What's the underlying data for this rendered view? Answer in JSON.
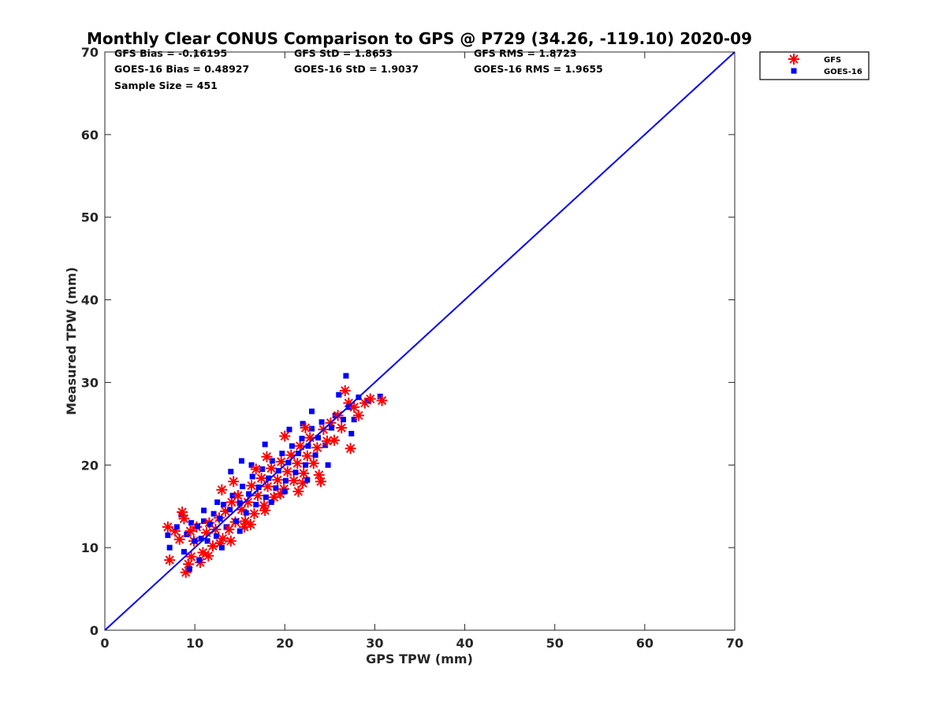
{
  "chart_data": {
    "type": "scatter",
    "title": "Monthly Clear CONUS Comparison to GPS @ P729 (34.26, -119.10) 2020-09",
    "xlabel": "GPS TPW (mm)",
    "ylabel": "Measured TPW (mm)",
    "xlim": [
      0,
      70
    ],
    "ylim": [
      0,
      70
    ],
    "xticks": [
      "0",
      "10",
      "20",
      "30",
      "40",
      "50",
      "60",
      "70"
    ],
    "yticks": [
      "0",
      "10",
      "20",
      "30",
      "40",
      "50",
      "60",
      "70"
    ],
    "grid": false,
    "legend_position": "outside-top-right",
    "stats": [
      "GFS Bias = -0.16195",
      "GFS StD = 1.8653",
      "GFS RMS = 1.8723",
      "GOES-16 Bias = 0.48927",
      "GOES-16 StD = 1.9037",
      "GOES-16 RMS = 1.9655",
      "Sample Size = 451"
    ],
    "reference_line": {
      "x": [
        0,
        70
      ],
      "y": [
        0,
        70
      ],
      "color": "#0000ff"
    },
    "series": [
      {
        "name": "GFS",
        "marker": "asterisk",
        "color": "#ff0000",
        "points": [
          [
            7.0,
            12.5
          ],
          [
            7.2,
            8.5
          ],
          [
            7.8,
            12.0
          ],
          [
            8.3,
            11.0
          ],
          [
            8.6,
            14.3
          ],
          [
            9.0,
            7.0
          ],
          [
            9.3,
            8.0
          ],
          [
            9.6,
            8.9
          ],
          [
            9.9,
            10.8
          ],
          [
            10.2,
            12.5
          ],
          [
            10.6,
            8.2
          ],
          [
            10.9,
            9.4
          ],
          [
            11.3,
            11.8
          ],
          [
            11.6,
            13.0
          ],
          [
            12.0,
            10.2
          ],
          [
            12.3,
            12.2
          ],
          [
            12.7,
            13.6
          ],
          [
            13.1,
            11.1
          ],
          [
            13.4,
            14.4
          ],
          [
            13.8,
            12.2
          ],
          [
            14.1,
            15.5
          ],
          [
            14.5,
            13.1
          ],
          [
            14.8,
            16.3
          ],
          [
            15.2,
            14.6
          ],
          [
            15.6,
            13.2
          ],
          [
            15.9,
            15.5
          ],
          [
            16.3,
            17.5
          ],
          [
            16.6,
            14.1
          ],
          [
            17.0,
            16.3
          ],
          [
            17.4,
            18.4
          ],
          [
            17.7,
            15.1
          ],
          [
            18.1,
            17.4
          ],
          [
            18.5,
            19.6
          ],
          [
            18.8,
            16.1
          ],
          [
            19.2,
            18.2
          ],
          [
            19.6,
            20.4
          ],
          [
            19.9,
            17.1
          ],
          [
            20.3,
            19.2
          ],
          [
            20.7,
            21.2
          ],
          [
            21.0,
            18.1
          ],
          [
            21.4,
            20.2
          ],
          [
            21.7,
            22.3
          ],
          [
            22.1,
            19.0
          ],
          [
            22.5,
            21.1
          ],
          [
            22.8,
            23.3
          ],
          [
            23.2,
            20.2
          ],
          [
            23.6,
            22.1
          ],
          [
            24.0,
            18.0
          ],
          [
            24.3,
            24.3
          ],
          [
            24.7,
            22.9
          ],
          [
            25.1,
            25.1
          ],
          [
            25.5,
            23.0
          ],
          [
            25.9,
            26.0
          ],
          [
            26.3,
            24.5
          ],
          [
            26.7,
            29.0
          ],
          [
            27.1,
            27.5
          ],
          [
            27.3,
            22.0
          ],
          [
            27.7,
            27.0
          ],
          [
            28.2,
            26.0
          ],
          [
            28.9,
            27.5
          ],
          [
            29.5,
            28.0
          ],
          [
            30.8,
            27.8
          ],
          [
            11.5,
            9.0
          ],
          [
            12.8,
            10.5
          ],
          [
            14.0,
            10.8
          ],
          [
            15.5,
            12.5
          ],
          [
            16.2,
            12.8
          ],
          [
            17.8,
            14.5
          ],
          [
            19.5,
            16.5
          ],
          [
            21.5,
            16.8
          ],
          [
            22.0,
            17.8
          ],
          [
            23.8,
            18.8
          ],
          [
            20.0,
            23.5
          ],
          [
            22.3,
            24.5
          ],
          [
            13.0,
            17.0
          ],
          [
            14.3,
            18.0
          ],
          [
            16.8,
            19.5
          ],
          [
            18.0,
            21.0
          ],
          [
            8.8,
            13.5
          ],
          [
            9.5,
            12.0
          ]
        ]
      },
      {
        "name": "GOES-16",
        "marker": "square",
        "color": "#0000ff",
        "points": [
          [
            7.0,
            11.5
          ],
          [
            7.2,
            10.0
          ],
          [
            8.0,
            12.5
          ],
          [
            8.5,
            14.0
          ],
          [
            8.8,
            9.5
          ],
          [
            9.1,
            11.6
          ],
          [
            9.4,
            7.4
          ],
          [
            9.6,
            13.0
          ],
          [
            10.0,
            10.8
          ],
          [
            10.3,
            12.6
          ],
          [
            10.7,
            11.1
          ],
          [
            11.0,
            13.2
          ],
          [
            11.4,
            10.8
          ],
          [
            11.7,
            12.8
          ],
          [
            12.1,
            14.1
          ],
          [
            12.4,
            11.4
          ],
          [
            12.8,
            13.5
          ],
          [
            13.2,
            15.2
          ],
          [
            13.5,
            12.5
          ],
          [
            13.9,
            14.6
          ],
          [
            14.2,
            16.3
          ],
          [
            14.6,
            13.2
          ],
          [
            15.0,
            15.4
          ],
          [
            15.3,
            17.4
          ],
          [
            15.7,
            14.2
          ],
          [
            16.0,
            16.5
          ],
          [
            16.4,
            18.6
          ],
          [
            16.8,
            15.2
          ],
          [
            17.1,
            17.3
          ],
          [
            17.5,
            19.5
          ],
          [
            17.9,
            16.1
          ],
          [
            18.2,
            18.4
          ],
          [
            18.6,
            20.5
          ],
          [
            19.0,
            17.2
          ],
          [
            19.3,
            19.3
          ],
          [
            19.7,
            21.4
          ],
          [
            20.1,
            18.1
          ],
          [
            20.4,
            20.3
          ],
          [
            20.8,
            22.3
          ],
          [
            21.2,
            19.1
          ],
          [
            21.5,
            21.4
          ],
          [
            21.9,
            23.2
          ],
          [
            22.3,
            20.0
          ],
          [
            22.6,
            22.3
          ],
          [
            23.0,
            24.4
          ],
          [
            23.4,
            21.2
          ],
          [
            23.7,
            23.3
          ],
          [
            24.1,
            25.2
          ],
          [
            24.5,
            22.4
          ],
          [
            24.8,
            20.0
          ],
          [
            25.2,
            24.5
          ],
          [
            25.6,
            26.0
          ],
          [
            26.0,
            28.5
          ],
          [
            26.5,
            25.5
          ],
          [
            26.8,
            30.8
          ],
          [
            27.1,
            27.0
          ],
          [
            27.4,
            23.8
          ],
          [
            27.7,
            25.5
          ],
          [
            28.2,
            28.2
          ],
          [
            29.3,
            27.8
          ],
          [
            30.6,
            28.3
          ],
          [
            15.2,
            20.5
          ],
          [
            16.3,
            20.0
          ],
          [
            17.8,
            22.5
          ],
          [
            20.5,
            24.3
          ],
          [
            22.0,
            25.0
          ],
          [
            23.0,
            26.5
          ],
          [
            11.0,
            14.5
          ],
          [
            12.5,
            15.5
          ],
          [
            14.0,
            19.2
          ],
          [
            18.5,
            15.5
          ],
          [
            20.0,
            16.8
          ],
          [
            22.5,
            18.2
          ],
          [
            13.0,
            10.0
          ],
          [
            15.0,
            12.0
          ],
          [
            10.5,
            8.5
          ]
        ]
      }
    ]
  }
}
